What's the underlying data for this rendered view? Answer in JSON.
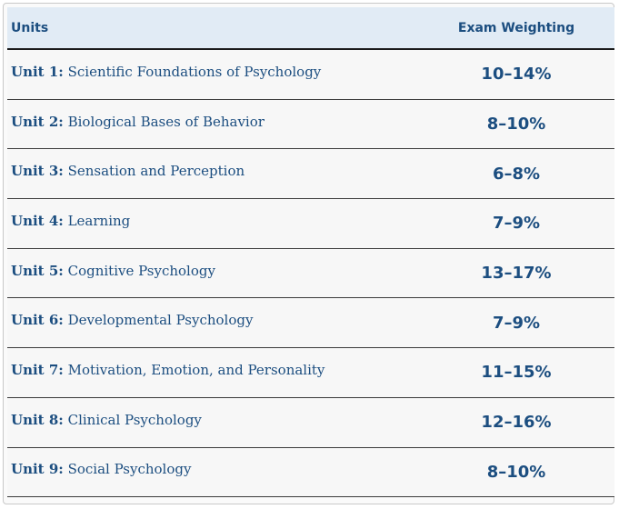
{
  "table": {
    "headers": {
      "units": "Units",
      "weighting": "Exam Weighting"
    },
    "rows": [
      {
        "unit": "Unit 1:",
        "name": "Scientific Foundations of Psychology",
        "weighting": "10–14%"
      },
      {
        "unit": "Unit 2:",
        "name": "Biological Bases of Behavior",
        "weighting": "8–10%"
      },
      {
        "unit": "Unit 3:",
        "name": "Sensation and Perception",
        "weighting": "6–8%"
      },
      {
        "unit": "Unit 4:",
        "name": "Learning",
        "weighting": "7–9%"
      },
      {
        "unit": "Unit 5:",
        "name": "Cognitive Psychology",
        "weighting": "13–17%"
      },
      {
        "unit": "Unit 6:",
        "name": "Developmental Psychology",
        "weighting": "7–9%"
      },
      {
        "unit": "Unit 7:",
        "name": "Motivation, Emotion, and Personality",
        "weighting": "11–15%"
      },
      {
        "unit": "Unit 8:",
        "name": "Clinical Psychology",
        "weighting": "12–16%"
      },
      {
        "unit": "Unit 9:",
        "name": "Social Psychology",
        "weighting": "8–10%"
      }
    ]
  },
  "colors": {
    "text": "#1c4e80",
    "header_bg": "#e1ebf5"
  }
}
